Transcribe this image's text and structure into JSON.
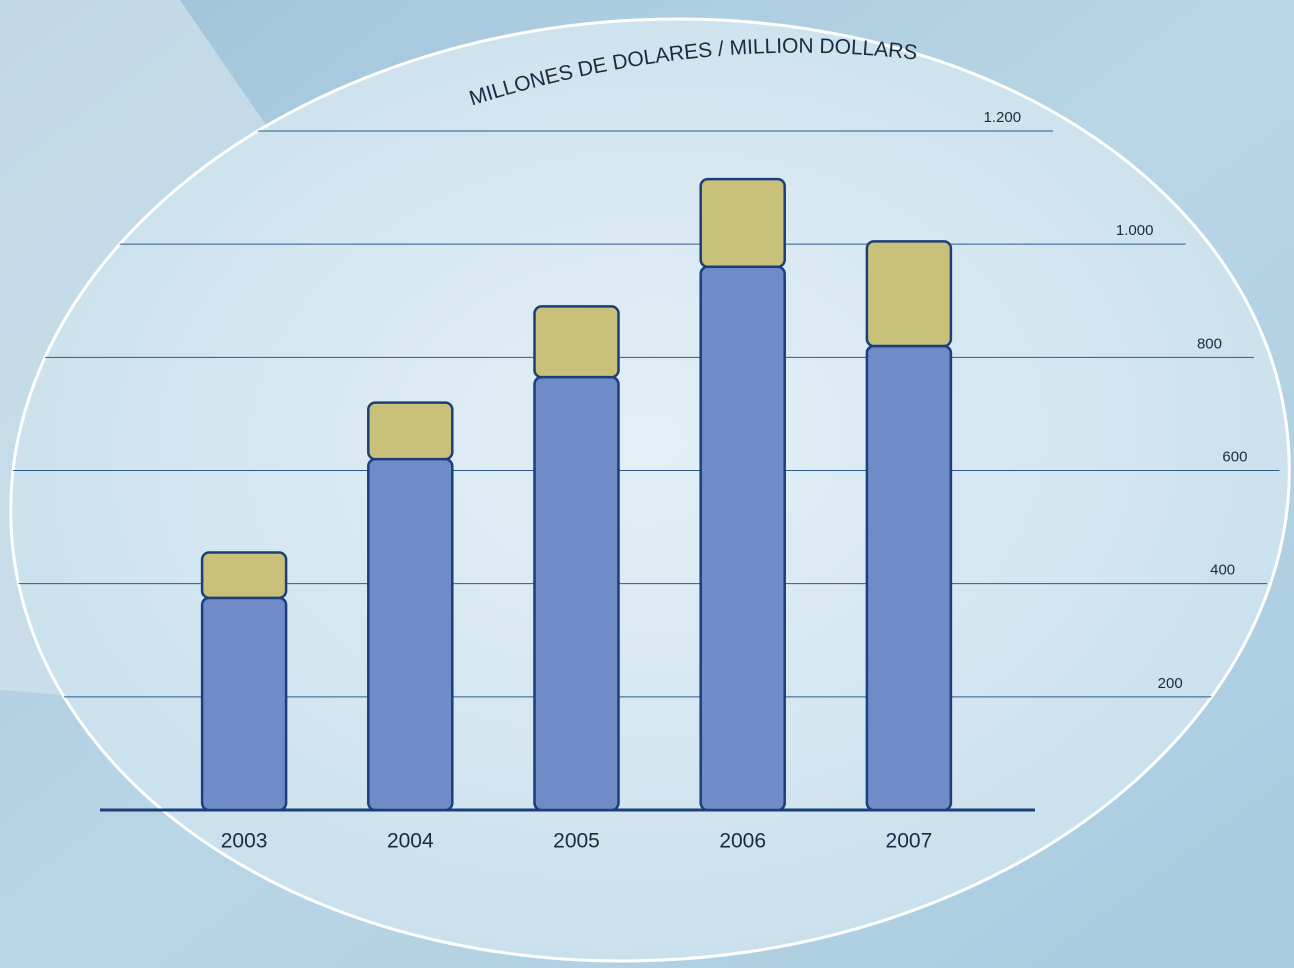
{
  "chart_data": {
    "type": "stacked-bar",
    "title": "MILLONES DE DOLARES / MILLION DOLLARS",
    "categories": [
      "2003",
      "2004",
      "2005",
      "2006",
      "2007"
    ],
    "series": [
      {
        "color": "#6f8cc8",
        "values": [
          375,
          620,
          765,
          960,
          820
        ]
      },
      {
        "color": "#c9c07a",
        "values": [
          80,
          100,
          125,
          155,
          185
        ]
      }
    ],
    "ylim": [
      0,
      1200
    ],
    "yticks": [
      200,
      400,
      600,
      800,
      {
        "value": 1000,
        "label": "1.000"
      },
      {
        "value": 1200,
        "label": "1.200"
      }
    ],
    "grid": true
  }
}
